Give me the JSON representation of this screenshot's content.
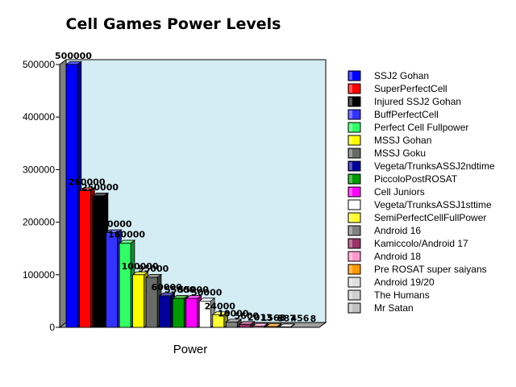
{
  "chart_data": {
    "type": "bar",
    "title": "Cell Games Power Levels",
    "xlabel": "Power",
    "ylabel": "",
    "ylim": [
      0,
      500000
    ],
    "yticks": [
      0,
      100000,
      200000,
      300000,
      400000,
      500000
    ],
    "tick_labels": [
      "0",
      "100000",
      "200000",
      "300000",
      "400000",
      "500000"
    ],
    "grid": false,
    "legend_position": "right",
    "categories": [
      "Power"
    ],
    "series": [
      {
        "name": "SSJ2 Gohan",
        "value": 500000,
        "color": "#0000ff",
        "label": "500000"
      },
      {
        "name": "SuperPerfectCell",
        "value": 260000,
        "color": "#ff0000",
        "label": "260000"
      },
      {
        "name": "Injured SSJ2 Gohan",
        "value": 250000,
        "color": "#000000",
        "label": "250000"
      },
      {
        "name": "BuffPerfectCell",
        "value": 180000,
        "color": "#3333ff",
        "label": "180000"
      },
      {
        "name": "Perfect Cell Fullpower",
        "value": 160000,
        "color": "#33ff66",
        "label": "160000"
      },
      {
        "name": "MSSJ Gohan",
        "value": 100000,
        "color": "#ffff00",
        "label": "100000"
      },
      {
        "name": "MSSJ Goku",
        "value": 95000,
        "color": "#666b66",
        "label": "95000"
      },
      {
        "name": "Vegeta/TrunksASSJ2ndtime",
        "value": 60000,
        "color": "#000099",
        "label": "60000"
      },
      {
        "name": "PiccoloPostROSAT",
        "value": 55000,
        "color": "#009900",
        "label": "55000"
      },
      {
        "name": "Cell Juniors",
        "value": 55000,
        "color": "#ff00ff",
        "label": "55000"
      },
      {
        "name": "Vegeta/TrunksASSJ1sttime",
        "value": 50000,
        "color": "#ffffff",
        "label": "50000"
      },
      {
        "name": "SemiPerfectCellFullPower",
        "value": 24000,
        "color": "#ffff33",
        "label": "24000"
      },
      {
        "name": "Android 16",
        "value": 10000,
        "color": "#808080",
        "label": "10000"
      },
      {
        "name": "Kamiccolo/Android 17",
        "value": 5600,
        "color": "#993366",
        "label": "5600"
      },
      {
        "name": "Android 18",
        "value": 2013,
        "color": "#ff99cc",
        "label": "2013"
      },
      {
        "name": "Pre ROSAT super saiyans",
        "value": 1568,
        "color": "#ff9900",
        "label": "1568"
      },
      {
        "name": "Android 19/20",
        "value": 887,
        "color": "#e0e0e0",
        "label": "887"
      },
      {
        "name": "The Humans",
        "value": 456,
        "color": "#d0d0d0",
        "label": "456"
      },
      {
        "name": "Mr Satan",
        "value": 8,
        "color": "#c0c0c0",
        "label": "8"
      }
    ],
    "colors": {
      "plot_background": "#d4ecf4",
      "left_wall": "#808080",
      "floor": "#a0a0a0"
    }
  }
}
